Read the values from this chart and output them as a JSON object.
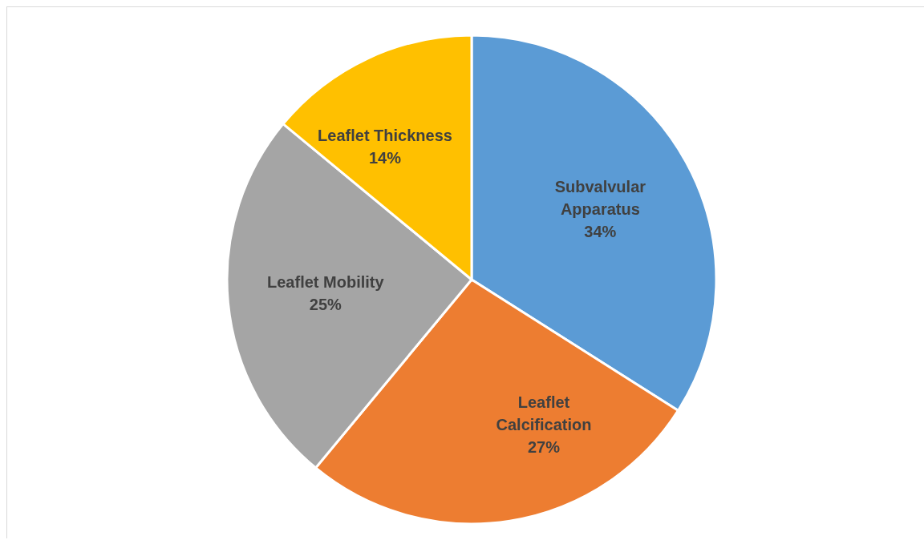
{
  "chart_data": {
    "type": "pie",
    "categories": [
      "Subvalvular Apparatus",
      "Leaflet Calcification",
      "Leaflet Mobility",
      "Leaflet Thickness"
    ],
    "values": [
      34,
      27,
      25,
      14
    ],
    "colors": [
      "#5b9bd5",
      "#ed7d31",
      "#a5a5a5",
      "#ffc000"
    ],
    "value_labels": [
      "34%",
      "27%",
      "25%",
      "14%"
    ],
    "legend": false
  }
}
